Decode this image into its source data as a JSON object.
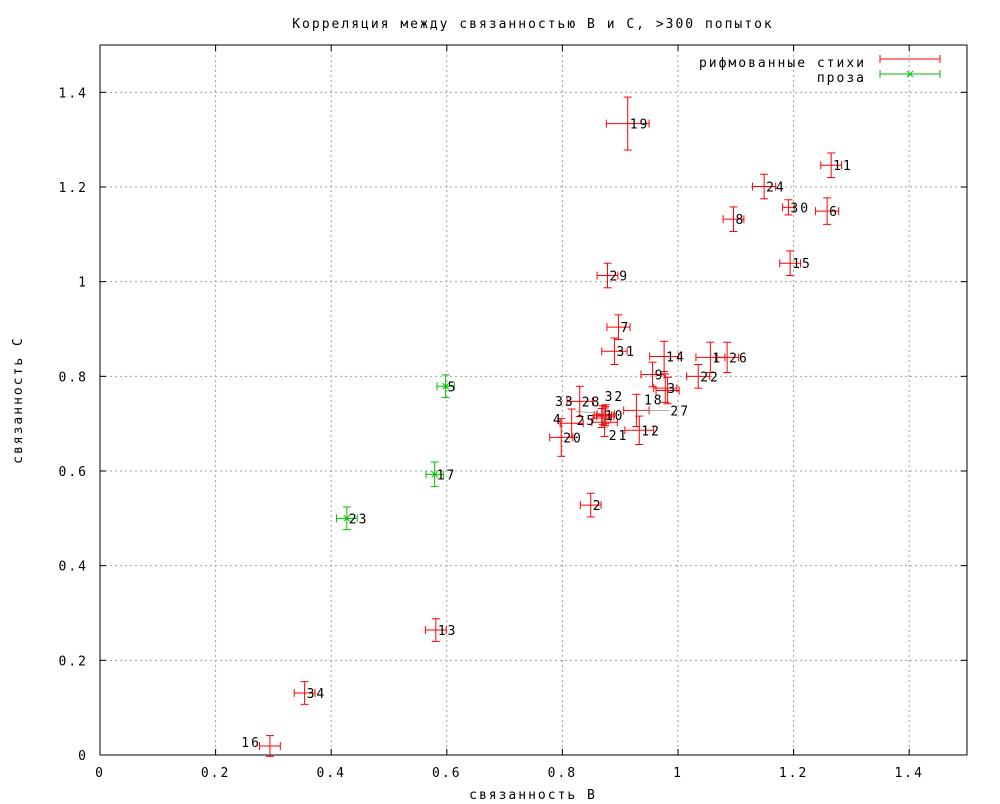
{
  "chart_data": {
    "type": "scatter",
    "title": "Корреляция между связанностью B и C, >300 попыток",
    "xlabel": "связанность B",
    "ylabel": "связанность C",
    "xlim": [
      0,
      1.5
    ],
    "ylim": [
      0,
      1.5
    ],
    "xticks": [
      0,
      0.2,
      0.4,
      0.6,
      0.8,
      1,
      1.2,
      1.4
    ],
    "yticks": [
      0,
      0.2,
      0.4,
      0.6,
      0.8,
      1,
      1.2,
      1.4
    ],
    "xtick_labels": [
      "0",
      "0.2",
      "0.4",
      "0.6",
      "0.8",
      "1",
      "1.2",
      "1.4"
    ],
    "ytick_labels": [
      "0",
      "0.2",
      "0.4",
      "0.6",
      "0.8",
      "1",
      "1.2",
      "1.4"
    ],
    "grid": true,
    "legend_position": "top-right",
    "series": [
      {
        "name": "рифмованные стихи",
        "color": "#ff0000",
        "marker": "+",
        "points": [
          {
            "label": "1",
            "x": 1.056,
            "y": 0.84,
            "xerr": 0.025,
            "yerr": 0.032
          },
          {
            "label": "2",
            "x": 0.849,
            "y": 0.528,
            "xerr": 0.018,
            "yerr": 0.025
          },
          {
            "label": "3",
            "x": 0.978,
            "y": 0.775,
            "xerr": 0.02,
            "yerr": 0.03
          },
          {
            "label": "4",
            "x": 0.816,
            "y": 0.701,
            "xerr": 0.02,
            "yerr": 0.03
          },
          {
            "label": "6",
            "x": 1.258,
            "y": 1.149,
            "xerr": 0.02,
            "yerr": 0.028
          },
          {
            "label": "7",
            "x": 0.897,
            "y": 0.904,
            "xerr": 0.02,
            "yerr": 0.026
          },
          {
            "label": "8",
            "x": 1.096,
            "y": 1.132,
            "xerr": 0.018,
            "yerr": 0.026
          },
          {
            "label": "9",
            "x": 0.956,
            "y": 0.804,
            "xerr": 0.02,
            "yerr": 0.026
          },
          {
            "label": "10",
            "x": 0.87,
            "y": 0.718,
            "xerr": 0.015,
            "yerr": 0.02
          },
          {
            "label": "11",
            "x": 1.265,
            "y": 1.246,
            "xerr": 0.018,
            "yerr": 0.026
          },
          {
            "label": "12",
            "x": 0.933,
            "y": 0.686,
            "xerr": 0.025,
            "yerr": 0.03
          },
          {
            "label": "13",
            "x": 0.581,
            "y": 0.264,
            "xerr": 0.018,
            "yerr": 0.024
          },
          {
            "label": "14",
            "x": 0.976,
            "y": 0.842,
            "xerr": 0.025,
            "yerr": 0.032
          },
          {
            "label": "15",
            "x": 1.194,
            "y": 1.039,
            "xerr": 0.018,
            "yerr": 0.026
          },
          {
            "label": "16",
            "x": 0.294,
            "y": 0.019,
            "xerr": 0.018,
            "yerr": 0.022
          },
          {
            "label": "18",
            "x": 0.982,
            "y": 0.77,
            "xerr": 0.02,
            "yerr": 0.028
          },
          {
            "label": "19",
            "x": 0.913,
            "y": 1.334,
            "xerr": 0.037,
            "yerr": 0.056
          },
          {
            "label": "20",
            "x": 0.798,
            "y": 0.671,
            "xerr": 0.02,
            "yerr": 0.04
          },
          {
            "label": "21",
            "x": 0.868,
            "y": 0.712,
            "xerr": 0.015,
            "yerr": 0.02
          },
          {
            "label": "22",
            "x": 1.035,
            "y": 0.8,
            "xerr": 0.02,
            "yerr": 0.025
          },
          {
            "label": "24",
            "x": 1.149,
            "y": 1.201,
            "xerr": 0.02,
            "yerr": 0.026
          },
          {
            "label": "25",
            "x": 0.874,
            "y": 0.716,
            "xerr": 0.015,
            "yerr": 0.02
          },
          {
            "label": "26",
            "x": 1.085,
            "y": 0.84,
            "xerr": 0.02,
            "yerr": 0.032
          },
          {
            "label": "27",
            "x": 0.928,
            "y": 0.728,
            "xerr": 0.022,
            "yerr": 0.034
          },
          {
            "label": "28",
            "x": 0.83,
            "y": 0.747,
            "xerr": 0.022,
            "yerr": 0.032
          },
          {
            "label": "29",
            "x": 0.878,
            "y": 1.013,
            "xerr": 0.018,
            "yerr": 0.026
          },
          {
            "label": "30",
            "x": 1.191,
            "y": 1.157,
            "xerr": 0.01,
            "yerr": 0.016
          },
          {
            "label": "31",
            "x": 0.89,
            "y": 0.853,
            "xerr": 0.022,
            "yerr": 0.028
          },
          {
            "label": "32",
            "x": 0.873,
            "y": 0.703,
            "xerr": 0.022,
            "yerr": 0.03
          },
          {
            "label": "33",
            "x": 0.875,
            "y": 0.72,
            "xerr": 0.015,
            "yerr": 0.02
          },
          {
            "label": "34",
            "x": 0.354,
            "y": 0.131,
            "xerr": 0.018,
            "yerr": 0.024
          }
        ]
      },
      {
        "name": "проза",
        "color": "#00c000",
        "marker": "x",
        "points": [
          {
            "label": "5",
            "x": 0.598,
            "y": 0.779,
            "xerr": 0.015,
            "yerr": 0.024
          },
          {
            "label": "17",
            "x": 0.579,
            "y": 0.593,
            "xerr": 0.015,
            "yerr": 0.026
          },
          {
            "label": "23",
            "x": 0.427,
            "y": 0.5,
            "xerr": 0.018,
            "yerr": 0.024
          }
        ]
      }
    ]
  }
}
